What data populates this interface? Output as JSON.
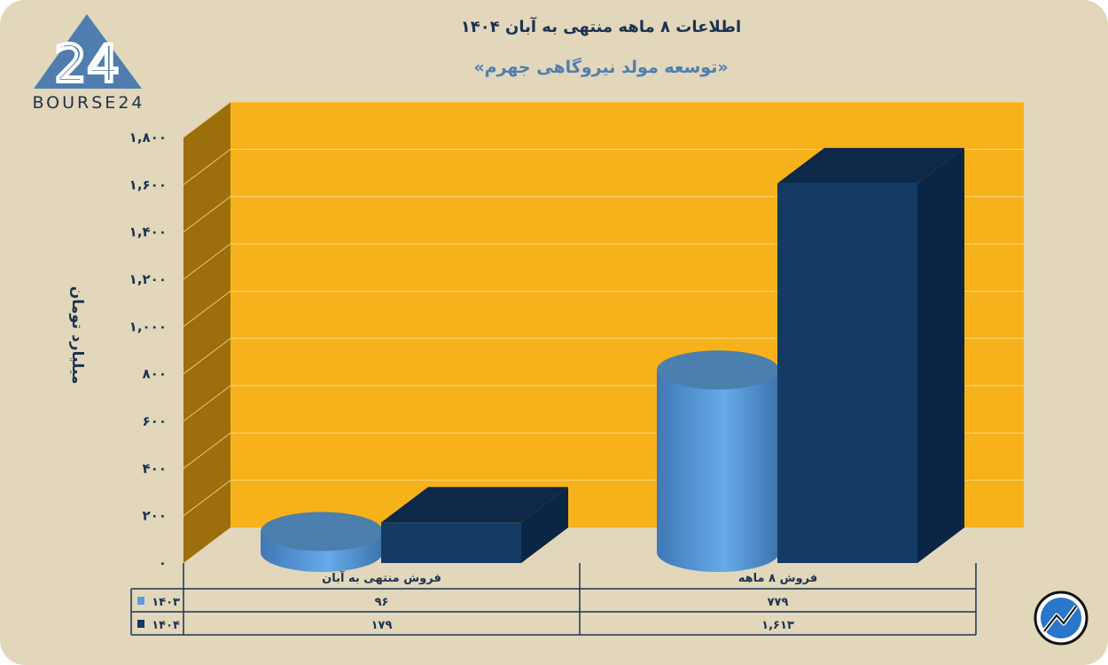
{
  "logo": {
    "text": "BOURSE24",
    "mark": "24"
  },
  "chart_data": {
    "type": "bar",
    "title": "اطلاعات ۸ ماهه منتهی به آبان ۱۴۰۴",
    "subtitle": "«توسعه مولد نیروگاهی جهرم»",
    "ylabel": "میلیارد تومان",
    "ylim": [
      0,
      1800
    ],
    "yticks": [
      0,
      200,
      400,
      600,
      800,
      1000,
      1200,
      1400,
      1600,
      1800
    ],
    "ytick_labels": [
      "۰",
      "۲۰۰",
      "۴۰۰",
      "۶۰۰",
      "۸۰۰",
      "۱,۰۰۰",
      "۱,۲۰۰",
      "۱,۴۰۰",
      "۱,۶۰۰",
      "۱,۸۰۰"
    ],
    "categories": [
      "فروش منتهی به  آبان",
      "فروش ۸  ماهه"
    ],
    "series": [
      {
        "name": "۱۴۰۳",
        "values": [
          96,
          779
        ],
        "labels": [
          "۹۶",
          "۷۷۹"
        ],
        "color": "#5a9fdc",
        "shape": "cylinder"
      },
      {
        "name": "۱۴۰۴",
        "values": [
          179,
          1613
        ],
        "labels": [
          "۱۷۹",
          "۱,۶۱۳"
        ],
        "color": "#163a63",
        "shape": "box"
      }
    ],
    "grid": true,
    "legend": "data-table"
  },
  "colors": {
    "background": "#e2d6bb",
    "wall": "#f7b11b",
    "side": "#9c6e0c"
  }
}
